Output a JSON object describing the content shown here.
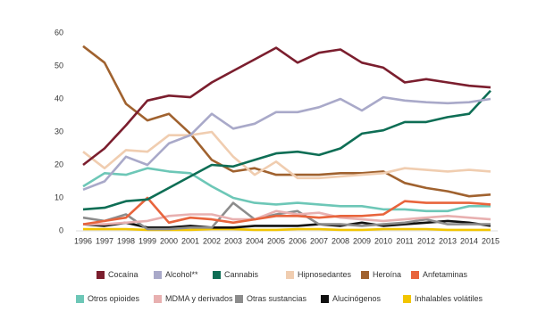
{
  "chart_data": {
    "type": "line",
    "categories": [
      "1996",
      "1997",
      "1998",
      "1999",
      "2000",
      "2001",
      "2002",
      "2003",
      "2004",
      "2005",
      "2006",
      "2007",
      "2008",
      "2009",
      "2010",
      "2011",
      "2012",
      "2013",
      "2014",
      "2015"
    ],
    "ylim": [
      0,
      60
    ],
    "yticks": [
      0,
      10,
      20,
      30,
      40,
      50,
      60
    ],
    "series": [
      {
        "name": "Cocaína",
        "color": "#7b1e2e",
        "values": [
          20,
          25,
          32,
          39.5,
          41,
          40.5,
          45,
          48.5,
          52,
          55.5,
          51,
          54,
          55,
          51,
          49.5,
          45,
          46,
          45,
          44,
          43.5
        ]
      },
      {
        "name": "Alcohol**",
        "color": "#a9a9c9",
        "values": [
          12.5,
          15,
          22.5,
          20,
          26.5,
          29,
          35.5,
          31,
          32.5,
          36,
          36,
          37.5,
          40,
          36.5,
          40.5,
          39.5,
          39,
          38.7,
          39,
          40
        ]
      },
      {
        "name": "Cannabis",
        "color": "#0e6e55",
        "values": [
          6.5,
          7,
          9,
          9.5,
          13,
          16.5,
          20,
          19.5,
          21.5,
          23.5,
          24,
          23,
          25,
          29.5,
          30.5,
          33,
          33,
          34.5,
          35.5,
          42.5
        ]
      },
      {
        "name": "Hipnosedantes",
        "color": "#f0cdb0",
        "values": [
          24,
          19,
          24.5,
          24,
          29,
          29,
          30,
          22.5,
          17,
          21,
          16,
          16,
          16.5,
          17,
          17.5,
          19,
          18.5,
          18,
          18.5,
          18
        ]
      },
      {
        "name": "Heroína",
        "color": "#a0622f",
        "values": [
          56,
          51,
          38.5,
          33.5,
          35.5,
          29.5,
          21.5,
          18,
          19,
          17,
          17,
          17,
          17.5,
          17.5,
          18,
          14.5,
          13,
          12,
          10.5,
          11
        ]
      },
      {
        "name": "Anfetaminas",
        "color": "#e8643c",
        "values": [
          2,
          3,
          4,
          10,
          2.5,
          4,
          3.5,
          2.5,
          3.5,
          4.5,
          4.5,
          4,
          4.5,
          4.5,
          5,
          9,
          8.5,
          8.5,
          8.5,
          8
        ]
      },
      {
        "name": "Otros opioides",
        "color": "#6dc7b7",
        "values": [
          13.5,
          17.5,
          17,
          19,
          18,
          17.5,
          13.5,
          10,
          8.5,
          8,
          8.5,
          8,
          7.5,
          7.5,
          6.5,
          6.5,
          6,
          6,
          7.5,
          7.5
        ]
      },
      {
        "name": "MDMA y derivados",
        "color": "#e8b0b0",
        "values": [
          2,
          2,
          2.5,
          3,
          4.5,
          5,
          5,
          3.5,
          3.5,
          6,
          5,
          5.5,
          4,
          3.5,
          3,
          3.5,
          4,
          4.5,
          4,
          3.5
        ]
      },
      {
        "name": "Otras sustancias",
        "color": "#8c8c8c",
        "values": [
          4,
          3,
          5,
          0.5,
          0.5,
          1,
          1,
          8.5,
          3.5,
          5,
          6,
          2,
          2,
          1.5,
          2,
          2.5,
          3.5,
          2,
          2,
          2
        ]
      },
      {
        "name": "Alucinógenos",
        "color": "#111111",
        "values": [
          2,
          1.5,
          2.5,
          1,
          1,
          1.5,
          1,
          1,
          1.5,
          1.5,
          1.5,
          2,
          1.5,
          2.5,
          1.5,
          2,
          2.5,
          3,
          2.5,
          1.5
        ]
      },
      {
        "name": "Inhalables volátiles",
        "color": "#f2c500",
        "values": [
          0.5,
          0.5,
          0.5,
          0.3,
          0.3,
          0.3,
          0.5,
          0.5,
          0.3,
          0.3,
          0.5,
          0.5,
          0.3,
          0.3,
          0.5,
          0.5,
          0.5,
          0.3,
          0.3,
          0.3
        ]
      }
    ]
  }
}
